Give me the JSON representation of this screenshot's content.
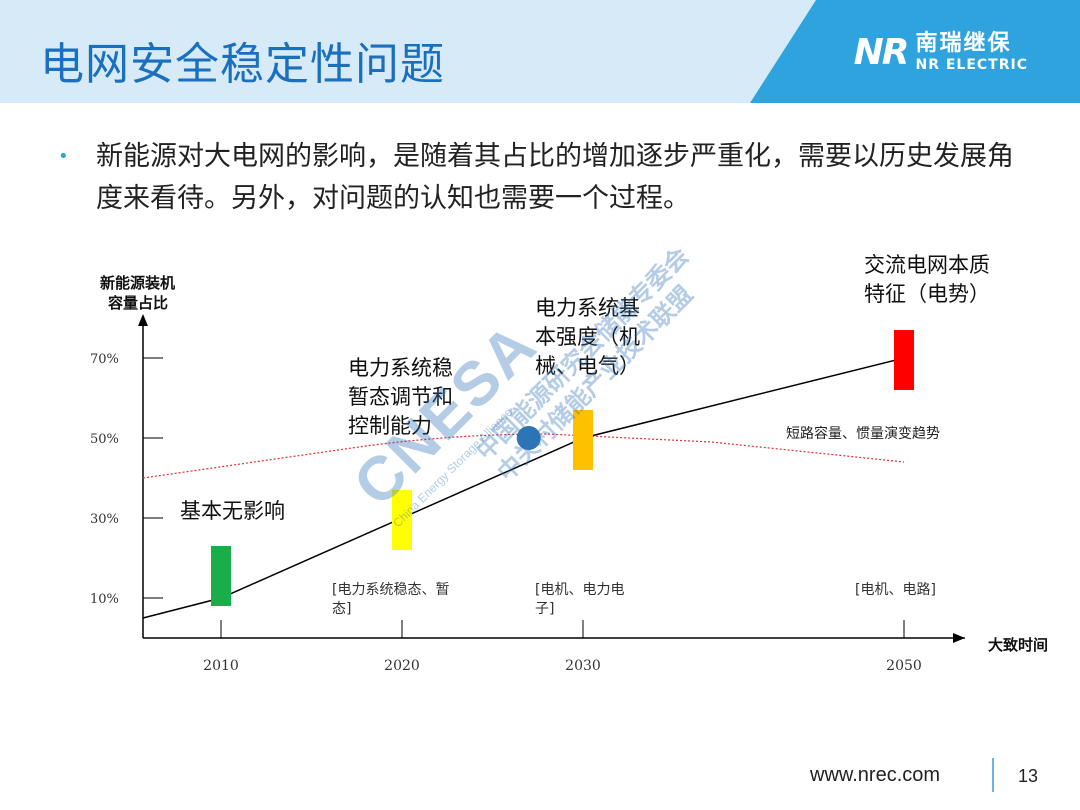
{
  "header": {
    "title": "电网安全稳定性问题",
    "logo_mark": "NR",
    "logo_cn": "南瑞继保",
    "logo_en": "NR ELECTRIC"
  },
  "bullet_char": "•",
  "paragraph": "新能源对大电网的影响，是随着其占比的增加逐步严重化，需要以历史发展角度来看待。另外，对问题的认知也需要一个过程。",
  "footer": {
    "url": "www.nrec.com",
    "page": "13"
  },
  "watermark": {
    "big": "CNESA",
    "sub": "China Energy Storage Alliance",
    "cn": "中国能源研究会储能专委会",
    "cn2": "中关村储能产业技术联盟"
  },
  "chart_data": {
    "type": "line",
    "ylabel": "新能源装机容量占比",
    "xlabel": "大致时间",
    "x_ticks": [
      "2010",
      "2020",
      "2030",
      "2050"
    ],
    "y_ticks": [
      "10%",
      "30%",
      "50%",
      "70%"
    ],
    "series": [
      {
        "x": [
          2008,
          2010,
          2020,
          2030,
          2050
        ],
        "y": [
          5,
          10,
          30,
          50,
          70
        ]
      }
    ],
    "reference_curve": {
      "label": "短路容量、惯量演变趋势",
      "x": [
        2008,
        2018,
        2028,
        2038,
        2050
      ],
      "y": [
        40,
        48,
        51,
        49,
        44
      ]
    },
    "markers": [
      {
        "x": 2010,
        "y_low": 8,
        "y_high": 23,
        "color": "#1aae4a",
        "label": "基本无影响",
        "note": ""
      },
      {
        "x": 2020,
        "y_low": 22,
        "y_high": 37,
        "color": "#ffff00",
        "label": "电力系统稳暂态调节和控制能力",
        "note": "[电力系统稳态、暂态]"
      },
      {
        "x": 2030,
        "y_low": 42,
        "y_high": 57,
        "color": "#ffc000",
        "label": "电力系统基本强度（机械、电气）",
        "note": "[电机、电力电子]"
      },
      {
        "x": 2050,
        "y_low": 62,
        "y_high": 77,
        "color": "#ff0000",
        "label": "交流电网本质特征（电势）",
        "note": "[电机、电路]"
      }
    ],
    "point": {
      "x": 2027,
      "y": 50,
      "color": "#2e75b6"
    },
    "colors": {
      "axis": "#000000",
      "line": "#000000",
      "reference": "#e03030"
    }
  }
}
